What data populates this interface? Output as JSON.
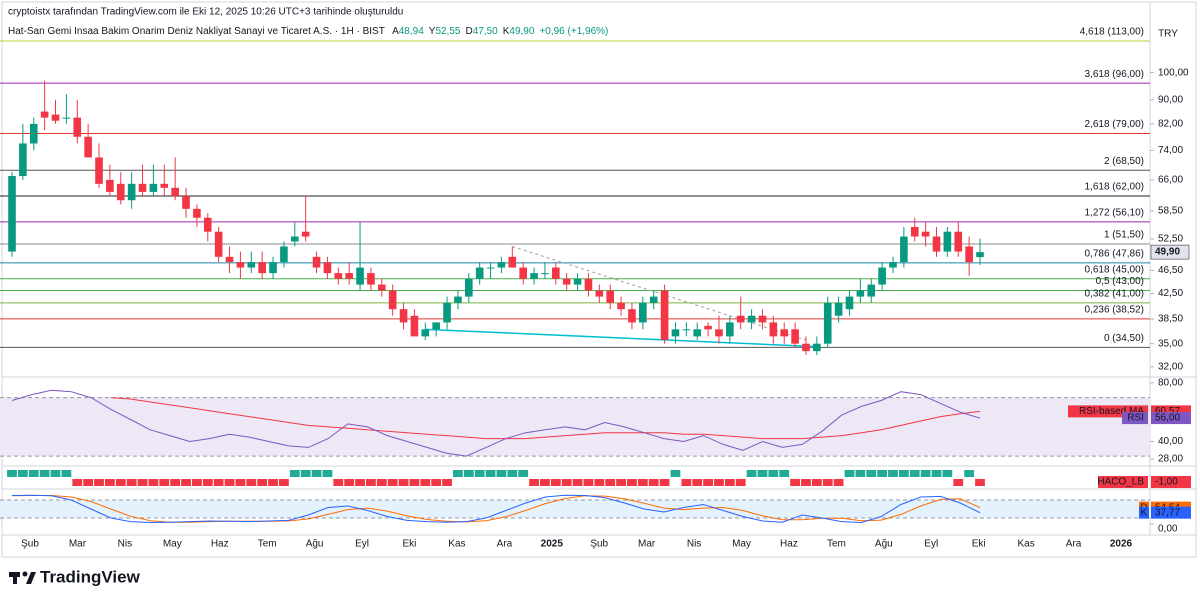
{
  "header": {
    "attribution": "cryptoistx tarafından TradingView.com ile Eki 12, 2025 10:26 UTC+3 tarihinde oluşturuldu",
    "symbol": "Hat-San Gemi Insaa Bakim Onarim Deniz Nakliyat Sanayi ve Ticaret A.S. · 1H · BIST",
    "ohlc": [
      {
        "label": "A",
        "value": "48,94"
      },
      {
        "label": "Y",
        "value": "52,55"
      },
      {
        "label": "D",
        "value": "47,50"
      },
      {
        "label": "K",
        "value": "49,90"
      }
    ],
    "change": "+0,96 (+1,96%)",
    "currency": "TRY"
  },
  "chart_data": [
    {
      "type": "candlestick",
      "log_scale": true,
      "ylim": [
        31,
        125
      ],
      "yticks": [
        {
          "value": 100,
          "label": "100,00"
        },
        {
          "value": 90,
          "label": "90,00"
        },
        {
          "value": 82,
          "label": "82,00"
        },
        {
          "value": 74,
          "label": "74,00"
        },
        {
          "value": 66,
          "label": "66,00"
        },
        {
          "value": 58.5,
          "label": "58,50"
        },
        {
          "value": 52.5,
          "label": "52,50"
        },
        {
          "value": 46.5,
          "label": "46,50"
        },
        {
          "value": 42.5,
          "label": "42,50"
        },
        {
          "value": 38.5,
          "label": "38,50"
        },
        {
          "value": 35,
          "label": "35,00"
        },
        {
          "value": 32,
          "label": "32,00"
        }
      ],
      "up_color": "#089981",
      "down_color": "#f23645",
      "candles": {
        "open": [
          50,
          67,
          76,
          86,
          85,
          84,
          84,
          78,
          72,
          66,
          65,
          61,
          65,
          63,
          65,
          64,
          62,
          59,
          57,
          54,
          49,
          48,
          47,
          48,
          46,
          48,
          52,
          54,
          49,
          48,
          46,
          46,
          44,
          46,
          44,
          43,
          40,
          39,
          36,
          37,
          38,
          41,
          42,
          45,
          47,
          47,
          49,
          47,
          45,
          46,
          47,
          45,
          44,
          45,
          43,
          43,
          41,
          40,
          38,
          41,
          43,
          36,
          37,
          36,
          37.5,
          37,
          36,
          39,
          38,
          39,
          38,
          37,
          37,
          35,
          34,
          35,
          39,
          40,
          42,
          42,
          44,
          47,
          48,
          55,
          54,
          53,
          50,
          54,
          51,
          48.94
        ],
        "high": [
          68,
          82,
          84,
          97,
          90,
          92,
          90,
          82,
          76,
          70,
          68,
          68,
          70,
          70,
          70,
          72,
          64,
          60,
          58,
          55,
          51,
          50,
          50,
          50,
          49,
          52,
          56,
          62,
          50,
          49,
          47,
          48,
          56,
          47,
          45,
          44,
          41,
          40,
          38,
          38,
          42,
          43,
          46,
          48,
          48,
          49,
          51,
          48,
          47,
          48,
          48,
          46,
          46,
          46,
          44,
          44,
          42,
          41,
          42,
          43,
          44,
          38,
          38,
          38,
          38,
          39,
          39,
          42,
          40,
          40,
          39,
          38,
          38,
          36,
          36,
          42,
          42,
          43,
          45,
          45,
          48,
          49,
          55,
          57,
          56,
          55,
          55,
          56,
          53,
          52.55
        ],
        "low": [
          49,
          66,
          74,
          80,
          82,
          82,
          76,
          72,
          64,
          62,
          60,
          59,
          62,
          62,
          62,
          61,
          57,
          55,
          52,
          48,
          46,
          45,
          46,
          45,
          45,
          47,
          51,
          52,
          46,
          45,
          44,
          44,
          43,
          43,
          42,
          39,
          37,
          36,
          35.5,
          36,
          37,
          40,
          41,
          44,
          45,
          46,
          47,
          44,
          44,
          45,
          44,
          43,
          43,
          42,
          41,
          40,
          39,
          37,
          37,
          40,
          35,
          35,
          36,
          35.5,
          36,
          35,
          35,
          37,
          37,
          37,
          35,
          35,
          34.5,
          33.5,
          33.5,
          34.5,
          38,
          39,
          41,
          41,
          43,
          46,
          47,
          52,
          51,
          49,
          49,
          49,
          45.5,
          47.5
        ],
        "close": [
          67,
          76,
          82,
          84,
          83,
          84,
          78,
          72,
          65,
          63,
          61,
          65,
          63,
          65,
          64,
          62,
          59,
          57,
          54,
          49,
          48,
          47,
          48,
          46,
          48,
          51,
          53,
          53,
          47,
          46,
          45,
          45,
          47,
          44,
          43,
          40,
          38,
          36,
          37,
          38,
          41,
          42,
          45,
          47,
          47,
          48,
          47,
          45,
          46,
          46,
          45,
          44,
          45,
          43,
          42,
          41,
          40,
          38,
          41,
          42,
          35.5,
          37,
          37,
          37,
          37,
          36,
          38,
          38,
          39,
          38,
          36,
          36,
          35,
          34,
          35,
          41,
          41,
          42,
          43,
          44,
          47,
          48,
          53,
          53,
          53,
          50,
          54,
          50,
          48,
          49.9
        ]
      },
      "last_price": {
        "value": 49.9,
        "label": "49,90"
      },
      "levels": [
        {
          "value": 113,
          "label": "4,618 (113,00)",
          "color": "#b8d33a"
        },
        {
          "value": 96,
          "label": "3,618 (96,00)",
          "color": "#9c27b0"
        },
        {
          "value": 79,
          "label": "2,618 (79,00)",
          "color": "#e53935"
        },
        {
          "value": 68.5,
          "label": "2 (68,50)",
          "color": "#555555"
        },
        {
          "value": 62,
          "label": "1,618 (62,00)",
          "color": "#222222"
        },
        {
          "value": 56.1,
          "label": "1,272 (56,10)",
          "color": "#9c27b0"
        },
        {
          "value": 51.5,
          "label": "1 (51,50)",
          "color": "#8a8a8a"
        },
        {
          "value": 47.86,
          "label": "0,786 (47,86)",
          "color": "#1e88a8"
        },
        {
          "value": 45,
          "label": "0,618 (45,00)",
          "color": "#4caf50"
        },
        {
          "value": 43,
          "label": "0,5 (43,00)",
          "color": "#4caf50"
        },
        {
          "value": 41,
          "label": "0,382 (41,00)",
          "color": "#7cb342"
        },
        {
          "value": 38.52,
          "label": "0,236 (38,52)",
          "color": "#e53935"
        },
        {
          "value": 34.5,
          "label": "0 (34,50)",
          "color": "#555555"
        }
      ],
      "trendlines": [
        {
          "from": [
            38,
            37
          ],
          "to": [
            74,
            34.6
          ],
          "color": "#00bcd4",
          "dashed": false
        },
        {
          "from": [
            46,
            51
          ],
          "to": [
            73,
            35.5
          ],
          "color": "#9e9e9e",
          "dashed": true
        }
      ],
      "time_labels": [
        "Şub",
        "Mar",
        "Nis",
        "May",
        "Haz",
        "Tem",
        "Ağu",
        "Eyl",
        "Eki",
        "Kas",
        "Ara",
        "2025",
        "Şub",
        "Mar",
        "Nis",
        "May",
        "Haz",
        "Tem",
        "Ağu",
        "Eyl",
        "Eki",
        "Kas",
        "Ara",
        "2026"
      ]
    },
    {
      "type": "line",
      "ylim": [
        26,
        82
      ],
      "yticks": [
        {
          "value": 80,
          "label": "80,00"
        },
        {
          "value": 40,
          "label": "40,00"
        },
        {
          "value": 28,
          "label": "28,00"
        }
      ],
      "band": [
        30,
        70
      ],
      "band_color": "#ede7f6",
      "series": [
        {
          "name": "RSI-based MA",
          "color": "#f23645",
          "last_label": "60,57",
          "values": [
            null,
            null,
            null,
            null,
            null,
            70,
            69,
            67,
            65,
            63,
            61,
            59,
            57,
            55,
            53,
            51,
            50,
            49,
            48,
            47,
            46,
            45,
            44,
            43,
            42,
            42,
            42,
            43,
            44,
            45,
            46,
            46,
            46,
            46,
            45,
            45,
            44,
            43,
            42,
            42,
            42,
            43,
            44,
            46,
            48,
            51,
            54,
            57,
            59,
            60.57
          ]
        },
        {
          "name": "RSI",
          "color": "#7e57c2",
          "last_label": "56,00",
          "values": [
            68,
            72,
            75,
            74,
            70,
            62,
            55,
            48,
            44,
            40,
            42,
            45,
            43,
            40,
            37,
            36,
            42,
            52,
            50,
            44,
            40,
            36,
            32,
            30,
            36,
            42,
            46,
            48,
            50,
            48,
            53,
            50,
            46,
            42,
            40,
            44,
            38,
            34,
            40,
            36,
            38,
            47,
            58,
            64,
            68,
            74,
            72,
            66,
            60,
            56
          ]
        }
      ]
    },
    {
      "type": "signal",
      "series": [
        {
          "name": "HACO_LB",
          "last_label": "-1,00",
          "up_color": "#22ab94",
          "down_color": "#f23645",
          "values": [
            1,
            1,
            1,
            1,
            1,
            1,
            -1,
            -1,
            -1,
            -1,
            -1,
            -1,
            -1,
            -1,
            -1,
            -1,
            -1,
            -1,
            -1,
            -1,
            -1,
            -1,
            -1,
            -1,
            -1,
            -1,
            1,
            1,
            1,
            1,
            -1,
            -1,
            -1,
            -1,
            -1,
            -1,
            -1,
            -1,
            -1,
            -1,
            -1,
            1,
            1,
            1,
            1,
            1,
            1,
            1,
            -1,
            -1,
            -1,
            -1,
            -1,
            -1,
            -1,
            -1,
            -1,
            -1,
            -1,
            -1,
            -1,
            1,
            -1,
            -1,
            -1,
            -1,
            -1,
            -1,
            1,
            1,
            1,
            1,
            -1,
            -1,
            -1,
            -1,
            -1,
            1,
            1,
            1,
            1,
            1,
            1,
            1,
            1,
            1,
            1,
            -1,
            1,
            -1
          ]
        }
      ]
    },
    {
      "type": "line",
      "ylim": [
        0,
        100
      ],
      "yticks": [
        {
          "value": 0,
          "label": "0,00"
        }
      ],
      "band": [
        20,
        80
      ],
      "band_color": "#e3f2fd",
      "series": [
        {
          "name": "D",
          "color": "#ff6d00",
          "last_label": "54,54",
          "values": [
            94,
            95,
            95,
            90,
            75,
            50,
            26,
            11,
            6,
            6,
            8,
            9,
            9,
            9,
            10,
            17,
            32,
            48,
            53,
            43,
            27,
            15,
            9,
            7,
            11,
            24,
            45,
            68,
            85,
            94,
            93,
            84,
            69,
            53,
            48,
            53,
            55,
            45,
            27,
            14,
            14,
            19,
            19,
            11,
            13,
            32,
            60,
            82,
            84,
            54.54
          ]
        },
        {
          "name": "K",
          "color": "#2962ff",
          "last_label": "37,77",
          "values": [
            95,
            96,
            94,
            80,
            50,
            20,
            8,
            5,
            6,
            8,
            10,
            9,
            8,
            10,
            12,
            30,
            55,
            60,
            45,
            25,
            12,
            8,
            6,
            8,
            20,
            45,
            70,
            90,
            96,
            95,
            88,
            70,
            50,
            40,
            55,
            65,
            45,
            25,
            10,
            6,
            30,
            20,
            8,
            5,
            25,
            65,
            90,
            92,
            70,
            37.77
          ]
        }
      ]
    }
  ],
  "footer": {
    "brand": "TradingView"
  }
}
